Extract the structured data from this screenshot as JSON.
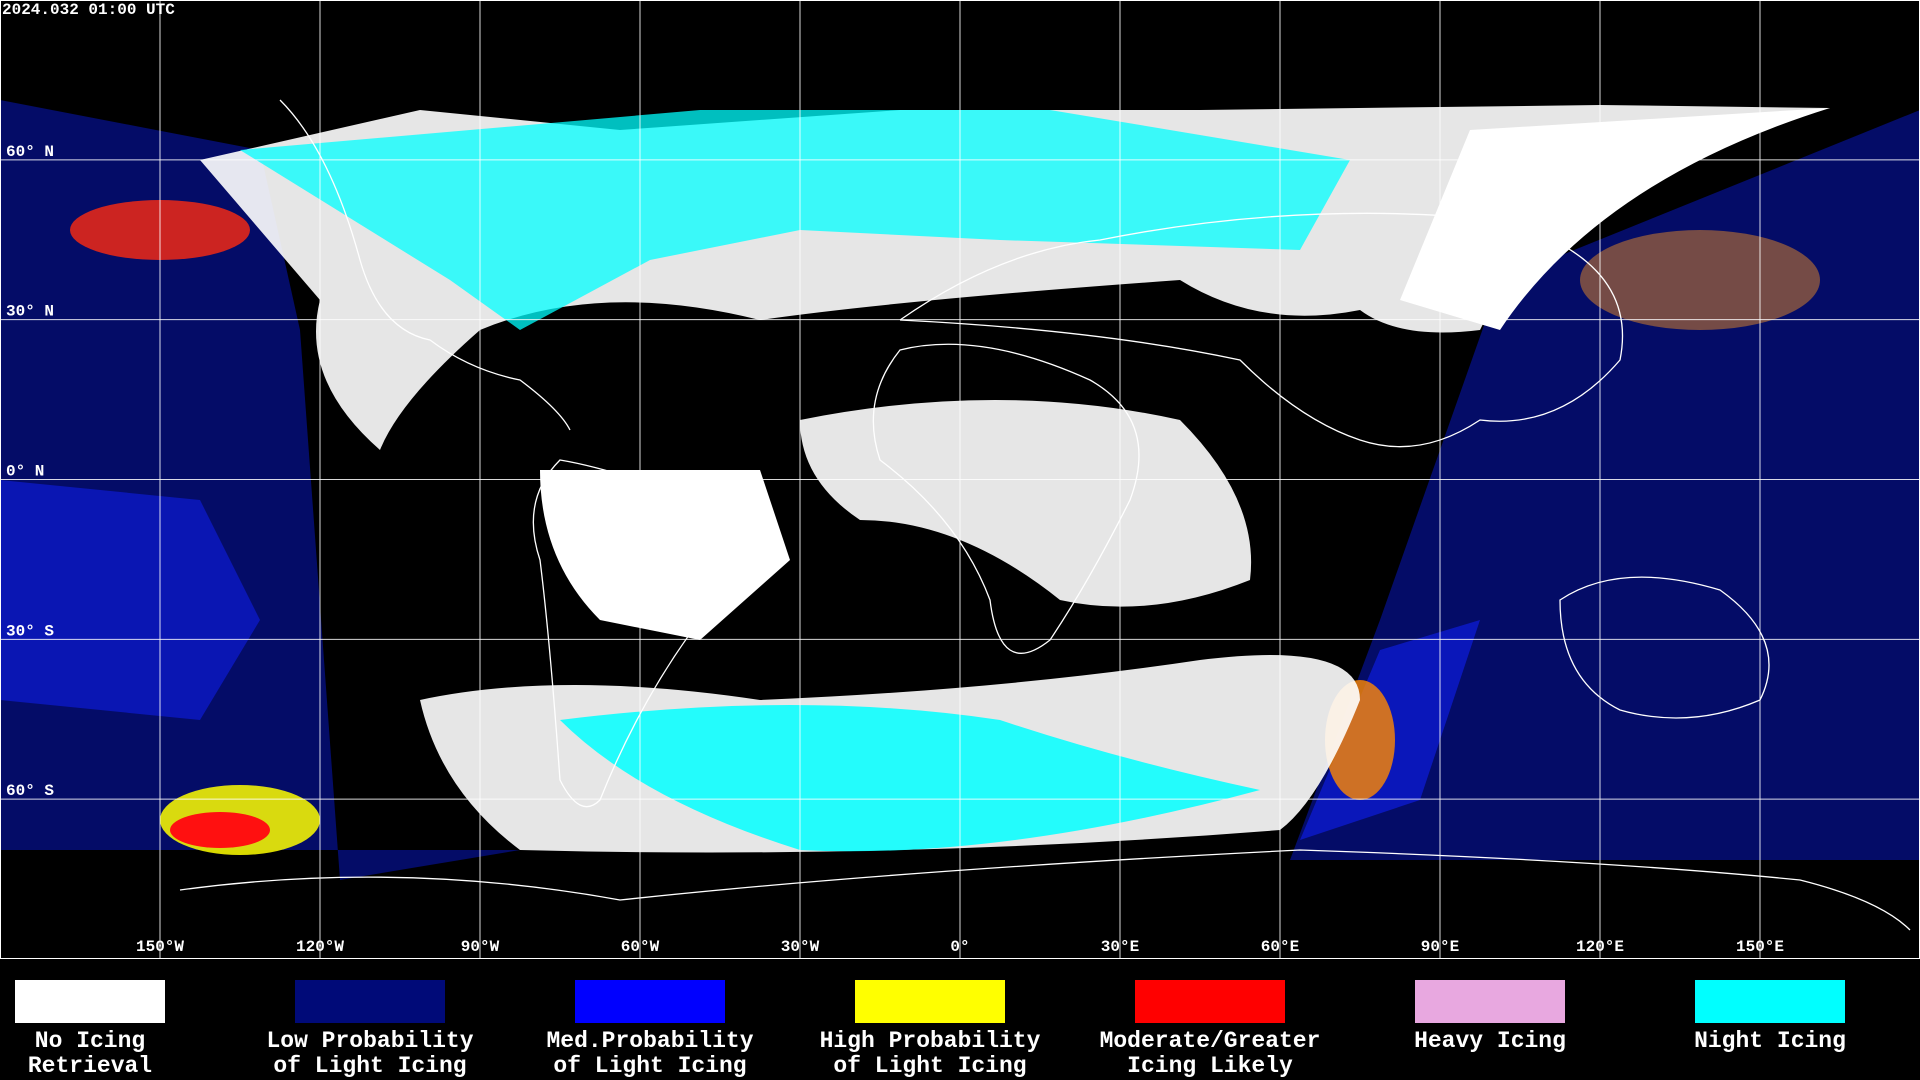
{
  "header": {
    "timestamp": "2024.032 01:00 UTC"
  },
  "map": {
    "latitude_labels": [
      "60° N",
      "30° N",
      "0° N",
      "30° S",
      "60° S"
    ],
    "longitude_labels": [
      "150°W",
      "120°W",
      "90°W",
      "60°W",
      "30°W",
      "0°",
      "30°E",
      "60°E",
      "90°E",
      "120°E",
      "150°E"
    ]
  },
  "legend": {
    "items": [
      {
        "lines": [
          "No Icing",
          "Retrieval"
        ],
        "color": "#ffffff"
      },
      {
        "lines": [
          "Low Probability",
          "of Light Icing"
        ],
        "color": "#000a78"
      },
      {
        "lines": [
          "Med.Probability",
          "of Light Icing"
        ],
        "color": "#0000ff"
      },
      {
        "lines": [
          "High Probability",
          "of Light Icing"
        ],
        "color": "#ffff00"
      },
      {
        "lines": [
          "Moderate/Greater",
          "Icing Likely"
        ],
        "color": "#ff0000"
      },
      {
        "lines": [
          "Heavy Icing"
        ],
        "color": "#e8a8e0"
      },
      {
        "lines": [
          "Night Icing"
        ],
        "color": "#00ffff"
      }
    ]
  }
}
